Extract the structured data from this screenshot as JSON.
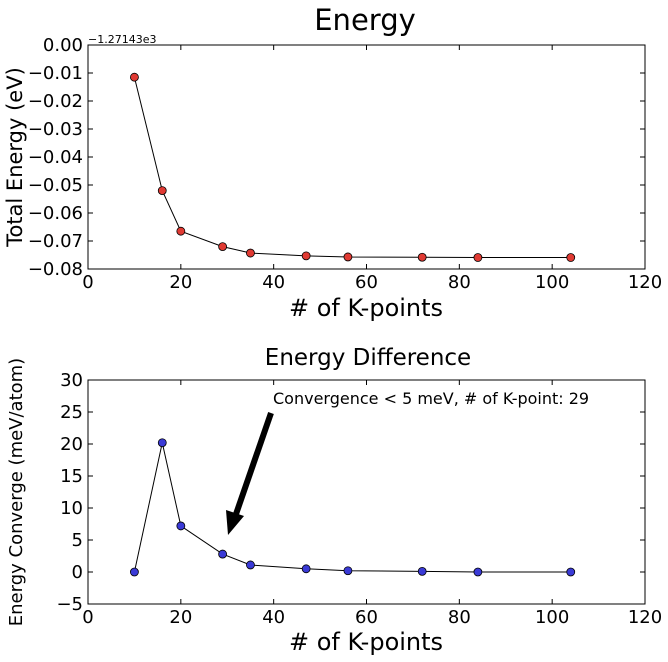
{
  "chart_data": [
    {
      "type": "line",
      "title": "Energy",
      "xlabel": "# of K-points",
      "ylabel": "Total Energy (eV)",
      "offset_text": "−1.27143e3",
      "xlim": [
        0,
        120
      ],
      "ylim": [
        -0.08,
        0.0
      ],
      "xticks": [
        0,
        20,
        40,
        60,
        80,
        100,
        120
      ],
      "yticks": [
        0.0,
        -0.01,
        -0.02,
        -0.03,
        -0.04,
        -0.05,
        -0.06,
        -0.07,
        -0.08
      ],
      "ytick_labels": [
        "0.00",
        "−0.01",
        "−0.02",
        "−0.03",
        "−0.04",
        "−0.05",
        "−0.06",
        "−0.07",
        "−0.08"
      ],
      "xtick_labels": [
        "0",
        "20",
        "40",
        "60",
        "80",
        "100",
        "120"
      ],
      "grid": false,
      "marker_color": "#e03a33",
      "line_color": "#000000",
      "series": [
        {
          "x": [
            10,
            16,
            20,
            29,
            35,
            47,
            56,
            72,
            84,
            104
          ],
          "y": [
            -0.0115,
            -0.052,
            -0.0665,
            -0.072,
            -0.0743,
            -0.0753,
            -0.0757,
            -0.0758,
            -0.0759,
            -0.0759
          ]
        }
      ]
    },
    {
      "type": "line",
      "title": "Energy Difference",
      "xlabel": "# of K-points",
      "ylabel": "Energy Converge (meV/atom)",
      "xlim": [
        0,
        120
      ],
      "ylim": [
        -5,
        30
      ],
      "xticks": [
        0,
        20,
        40,
        60,
        80,
        100,
        120
      ],
      "yticks": [
        30,
        25,
        20,
        15,
        10,
        5,
        0,
        -5
      ],
      "ytick_labels": [
        "30",
        "25",
        "20",
        "15",
        "10",
        "5",
        "0",
        "−5"
      ],
      "xtick_labels": [
        "0",
        "20",
        "40",
        "60",
        "80",
        "100",
        "120"
      ],
      "grid": false,
      "marker_color": "#3a3ad6",
      "line_color": "#000000",
      "series": [
        {
          "x": [
            10,
            16,
            20,
            29,
            35,
            47,
            56,
            72,
            84,
            104
          ],
          "y": [
            0.0,
            20.2,
            7.2,
            2.8,
            1.1,
            0.5,
            0.2,
            0.1,
            0.0,
            0.0
          ]
        }
      ],
      "annotation": {
        "text": "Convergence < 5 meV, # of K-point: 29",
        "points_to": [
          29,
          5
        ]
      }
    }
  ]
}
